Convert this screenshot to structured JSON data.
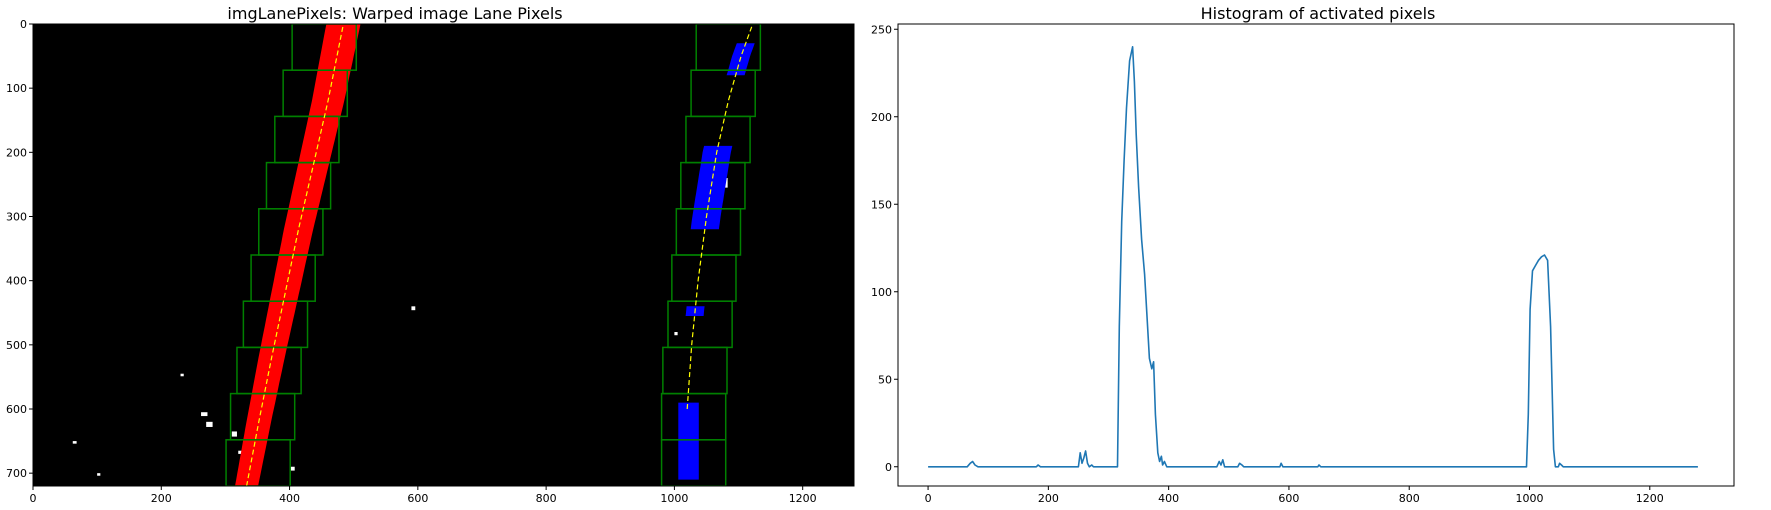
{
  "chart_data": [
    {
      "type": "image",
      "title": "imgLanePixels: Warped image Lane Pixels",
      "xlabel": "",
      "ylabel": "",
      "xlim": [
        0,
        1280
      ],
      "ylim": [
        720,
        0
      ],
      "xticks": [
        0,
        200,
        400,
        600,
        800,
        1000,
        1200
      ],
      "yticks": [
        0,
        100,
        200,
        300,
        400,
        500,
        600,
        700
      ],
      "background": "#000000",
      "colors": {
        "left_lane_pixels": "#ff0000",
        "right_lane_pixels": "#0000ff",
        "search_windows": "#008000",
        "fit_line": "#ffff00",
        "noise_pixels": "#ffffff"
      },
      "left_fit_line": {
        "x": [
          333,
          352,
          372,
          393,
          414,
          437,
          460,
          484
        ],
        "y": [
          720,
          620,
          520,
          420,
          320,
          220,
          120,
          0
        ]
      },
      "right_fit_line": {
        "x": [
          1020,
          1027,
          1037,
          1050,
          1066,
          1084,
          1104,
          1122
        ],
        "y": [
          600,
          500,
          400,
          300,
          200,
          120,
          50,
          0
        ]
      },
      "left_windows": [
        {
          "x": [
            301,
            401
          ],
          "y": [
            648,
            720
          ]
        },
        {
          "x": [
            308,
            408
          ],
          "y": [
            576,
            648
          ]
        },
        {
          "x": [
            318,
            418
          ],
          "y": [
            504,
            576
          ]
        },
        {
          "x": [
            328,
            428
          ],
          "y": [
            432,
            504
          ]
        },
        {
          "x": [
            340,
            440
          ],
          "y": [
            360,
            432
          ]
        },
        {
          "x": [
            352,
            452
          ],
          "y": [
            288,
            360
          ]
        },
        {
          "x": [
            364,
            464
          ],
          "y": [
            216,
            288
          ]
        },
        {
          "x": [
            377,
            477
          ],
          "y": [
            144,
            216
          ]
        },
        {
          "x": [
            390,
            490
          ],
          "y": [
            72,
            144
          ]
        },
        {
          "x": [
            404,
            504
          ],
          "y": [
            0,
            72
          ]
        }
      ],
      "right_windows": [
        {
          "x": [
            980,
            1080
          ],
          "y": [
            648,
            720
          ]
        },
        {
          "x": [
            980,
            1080
          ],
          "y": [
            576,
            648
          ]
        },
        {
          "x": [
            982,
            1082
          ],
          "y": [
            504,
            576
          ]
        },
        {
          "x": [
            990,
            1090
          ],
          "y": [
            432,
            504
          ]
        },
        {
          "x": [
            996,
            1096
          ],
          "y": [
            360,
            432
          ]
        },
        {
          "x": [
            1003,
            1103
          ],
          "y": [
            288,
            360
          ]
        },
        {
          "x": [
            1010,
            1110
          ],
          "y": [
            216,
            288
          ]
        },
        {
          "x": [
            1018,
            1118
          ],
          "y": [
            144,
            216
          ]
        },
        {
          "x": [
            1026,
            1126
          ],
          "y": [
            72,
            144
          ]
        },
        {
          "x": [
            1034,
            1134
          ],
          "y": [
            0,
            72
          ]
        }
      ]
    },
    {
      "type": "line",
      "title": "Histogram of activated pixels",
      "xlabel": "",
      "ylabel": "",
      "xlim": [
        -50,
        1340
      ],
      "ylim": [
        -11,
        253
      ],
      "xticks": [
        0,
        200,
        400,
        600,
        800,
        1000,
        1200
      ],
      "yticks": [
        0,
        50,
        100,
        150,
        200,
        250
      ],
      "grid": false,
      "series": [
        {
          "color": "#1f77b4",
          "x": [
            0,
            65,
            70,
            74,
            78,
            83,
            180,
            183,
            187,
            250,
            253,
            256,
            259,
            262,
            265,
            268,
            272,
            275,
            300,
            315,
            318,
            322,
            326,
            330,
            335,
            340,
            343,
            346,
            350,
            355,
            360,
            365,
            368,
            372,
            375,
            378,
            382,
            385,
            388,
            390,
            393,
            397,
            400,
            402,
            480,
            484,
            487,
            490,
            493,
            497,
            515,
            518,
            522,
            525,
            585,
            587,
            590,
            648,
            650,
            653,
            995,
            998,
            1001,
            1005,
            1010,
            1015,
            1020,
            1025,
            1030,
            1035,
            1040,
            1043,
            1048,
            1050,
            1053,
            1056,
            1280
          ],
          "y": [
            0,
            0,
            2,
            3,
            1,
            0,
            0,
            1,
            0,
            0,
            8,
            2,
            5,
            9,
            2,
            0,
            1,
            0,
            0,
            0,
            80,
            140,
            175,
            205,
            232,
            240,
            220,
            190,
            160,
            130,
            110,
            80,
            62,
            56,
            60,
            30,
            8,
            3,
            6,
            1,
            3,
            0,
            0,
            0,
            0,
            3,
            1,
            4,
            0,
            0,
            0,
            2,
            1,
            0,
            0,
            2,
            0,
            0,
            1,
            0,
            0,
            30,
            90,
            112,
            115,
            118,
            120,
            121,
            118,
            80,
            10,
            0,
            0,
            2,
            1,
            0,
            0
          ]
        }
      ]
    }
  ]
}
